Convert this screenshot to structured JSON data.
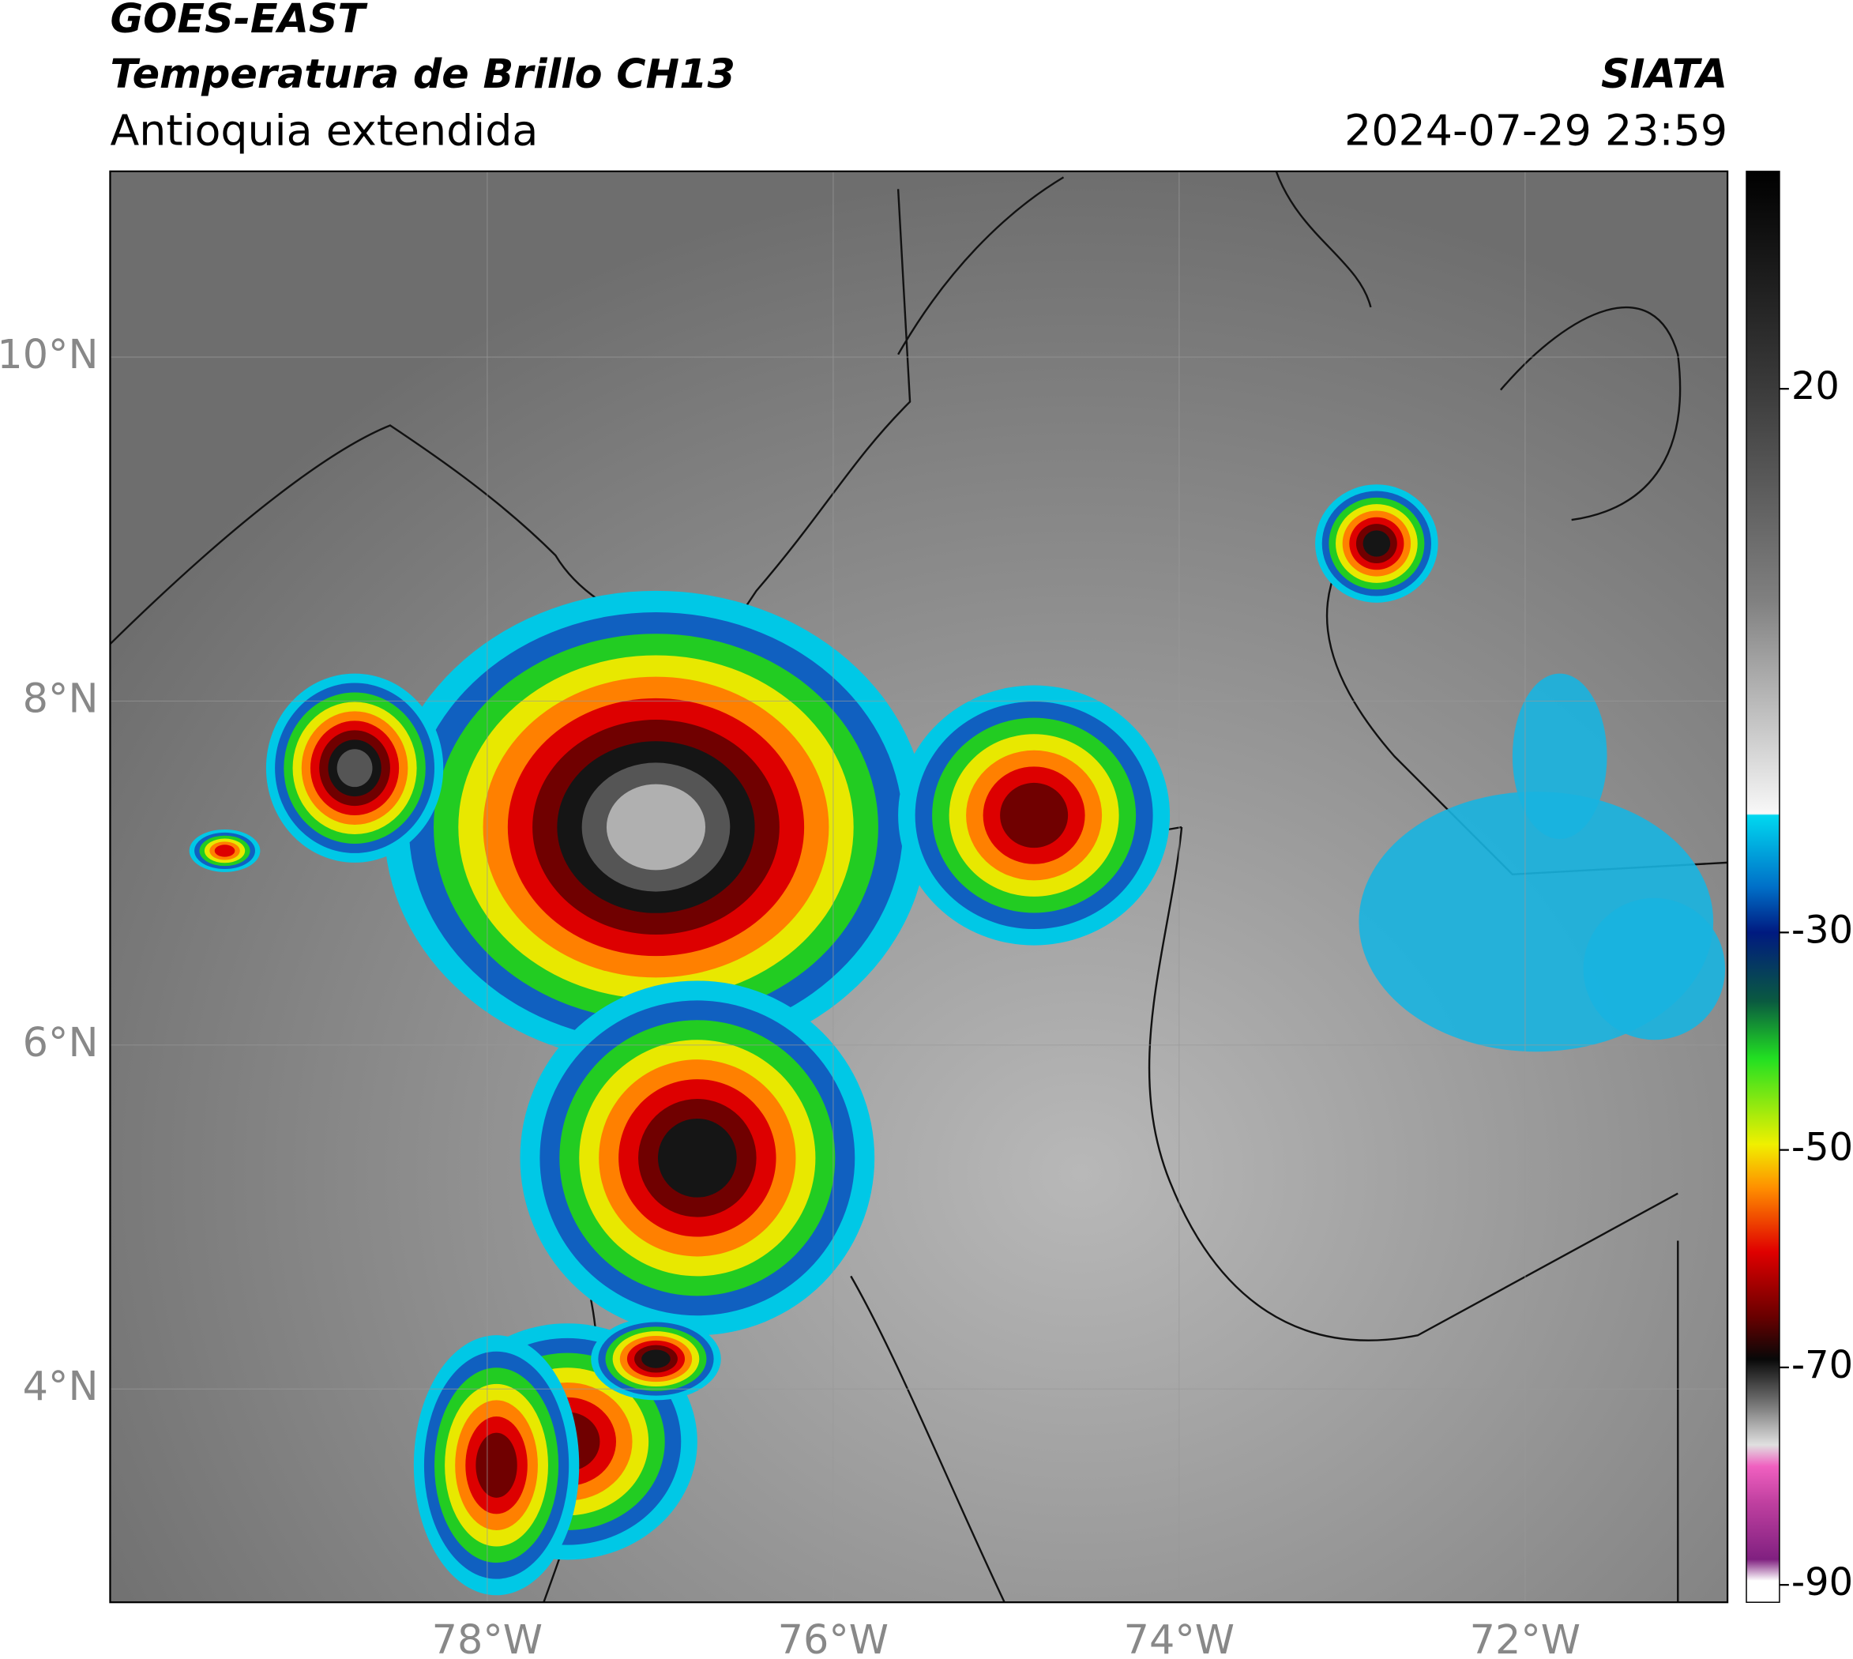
{
  "header": {
    "line1": "GOES-EAST",
    "line2": "Temperatura de Brillo CH13",
    "line3": "Antioquia extendida",
    "source": "SIATA",
    "datetime": "2024-07-29 23:59"
  },
  "map": {
    "lonlim": [
      -80.18,
      -70.83
    ],
    "latlim": [
      2.76,
      11.08
    ],
    "lon_ticks": [
      {
        "value": -78,
        "label": "78°W"
      },
      {
        "value": -76,
        "label": "76°W"
      },
      {
        "value": -74,
        "label": "74°W"
      },
      {
        "value": -72,
        "label": "72°W"
      }
    ],
    "lat_ticks": [
      {
        "value": 10,
        "label": "10°N"
      },
      {
        "value": 8,
        "label": "8°N"
      },
      {
        "value": 6,
        "label": "6°N"
      },
      {
        "value": 4,
        "label": "4°N"
      }
    ]
  },
  "colorbar": {
    "lim": [
      -91.6,
      40
    ],
    "ticks": [
      20,
      -30,
      -50,
      -70,
      -90
    ]
  }
}
